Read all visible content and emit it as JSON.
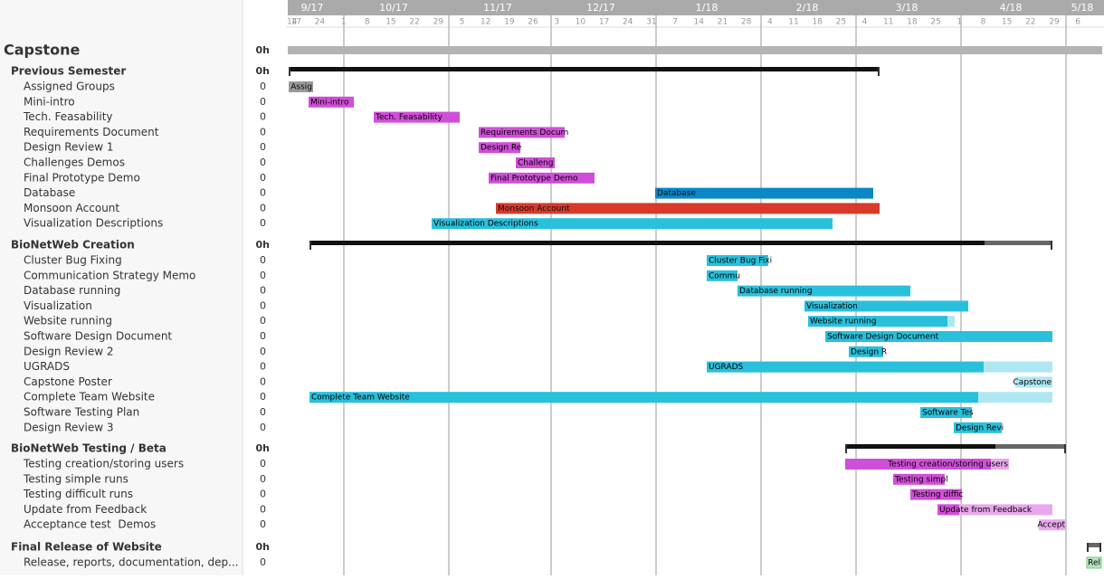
{
  "header": {
    "months": [
      "9/17",
      "10/17",
      "11/17",
      "12/17",
      "1/18",
      "2/18",
      "3/18",
      "4/18",
      "5/18"
    ],
    "weeks": [
      "14",
      "17",
      "24",
      "1",
      "8",
      "15",
      "22",
      "29",
      "5",
      "12",
      "19",
      "26",
      "3",
      "10",
      "17",
      "24",
      "31",
      "7",
      "14",
      "21",
      "28",
      "4",
      "11",
      "18",
      "25",
      "4",
      "11",
      "18",
      "25",
      "1",
      "8",
      "15",
      "22",
      "29",
      "6"
    ]
  },
  "project": {
    "name": "Capstone",
    "hours": "0h"
  },
  "groups": [
    {
      "name": "Previous Semester",
      "hours": "0h",
      "tasks": [
        {
          "name": "Assigned Groups",
          "hours": "0",
          "bar_label": "Assig"
        },
        {
          "name": "Mini-intro",
          "hours": "0",
          "bar_label": "Mini-intro"
        },
        {
          "name": "Tech. Feasability",
          "hours": "0",
          "bar_label": "Tech. Feasability"
        },
        {
          "name": "Requirements Document",
          "hours": "0",
          "bar_label": "Requirements Docum"
        },
        {
          "name": "Design Review 1",
          "hours": "0",
          "bar_label": "Design Re"
        },
        {
          "name": "Challenges Demos",
          "hours": "0",
          "bar_label": "Challeng"
        },
        {
          "name": "Final Prototype Demo",
          "hours": "0",
          "bar_label": "Final Prototype Demo"
        },
        {
          "name": "Database",
          "hours": "0",
          "bar_label": "Database"
        },
        {
          "name": "Monsoon Account",
          "hours": "0",
          "bar_label": "Monsoon Account"
        },
        {
          "name": "Visualization Descriptions",
          "hours": "0",
          "bar_label": "Visualization Descriptions"
        }
      ]
    },
    {
      "name": "BioNetWeb Creation",
      "hours": "0h",
      "tasks": [
        {
          "name": "Cluster Bug Fixing",
          "hours": "0",
          "bar_label": "Cluster Bug Fixi"
        },
        {
          "name": "Communication Strategy Memo",
          "hours": "0",
          "bar_label": "Commu"
        },
        {
          "name": "Database running",
          "hours": "0",
          "bar_label": "Database running"
        },
        {
          "name": "Visualization",
          "hours": "0",
          "bar_label": "Visualization"
        },
        {
          "name": "Website running",
          "hours": "0",
          "bar_label": "Website running"
        },
        {
          "name": "Software Design Document",
          "hours": "0",
          "bar_label": "Software Design Document"
        },
        {
          "name": "Design Review 2",
          "hours": "0",
          "bar_label": "Design R"
        },
        {
          "name": "UGRADS",
          "hours": "0",
          "bar_label": "UGRADS"
        },
        {
          "name": "Capstone Poster",
          "hours": "0",
          "bar_label": "Capstone"
        },
        {
          "name": "Complete Team Website",
          "hours": "0",
          "bar_label": "Complete Team Website"
        },
        {
          "name": "Software Testing Plan",
          "hours": "0",
          "bar_label": "Software Tes"
        },
        {
          "name": "Design Review 3",
          "hours": "0",
          "bar_label": "Design Revi"
        }
      ]
    },
    {
      "name": "BioNetWeb Testing / Beta",
      "hours": "0h",
      "tasks": [
        {
          "name": "Testing creation/storing users",
          "hours": "0",
          "bar_label": "Testing creation/storing users"
        },
        {
          "name": "Testing simple runs",
          "hours": "0",
          "bar_label": "Testing simpl"
        },
        {
          "name": "Testing difficult runs",
          "hours": "0",
          "bar_label": "Testing diffic"
        },
        {
          "name": "Update from Feedback",
          "hours": "0",
          "bar_label": "Update from Feedback"
        },
        {
          "name": "Acceptance test  Demos",
          "hours": "0",
          "bar_label": "Accept"
        }
      ]
    },
    {
      "name": "Final Release of Website",
      "hours": "0h",
      "tasks": [
        {
          "name": "Release, reports, documentation, dep...",
          "hours": "0",
          "bar_label": "Rel"
        }
      ]
    }
  ]
}
